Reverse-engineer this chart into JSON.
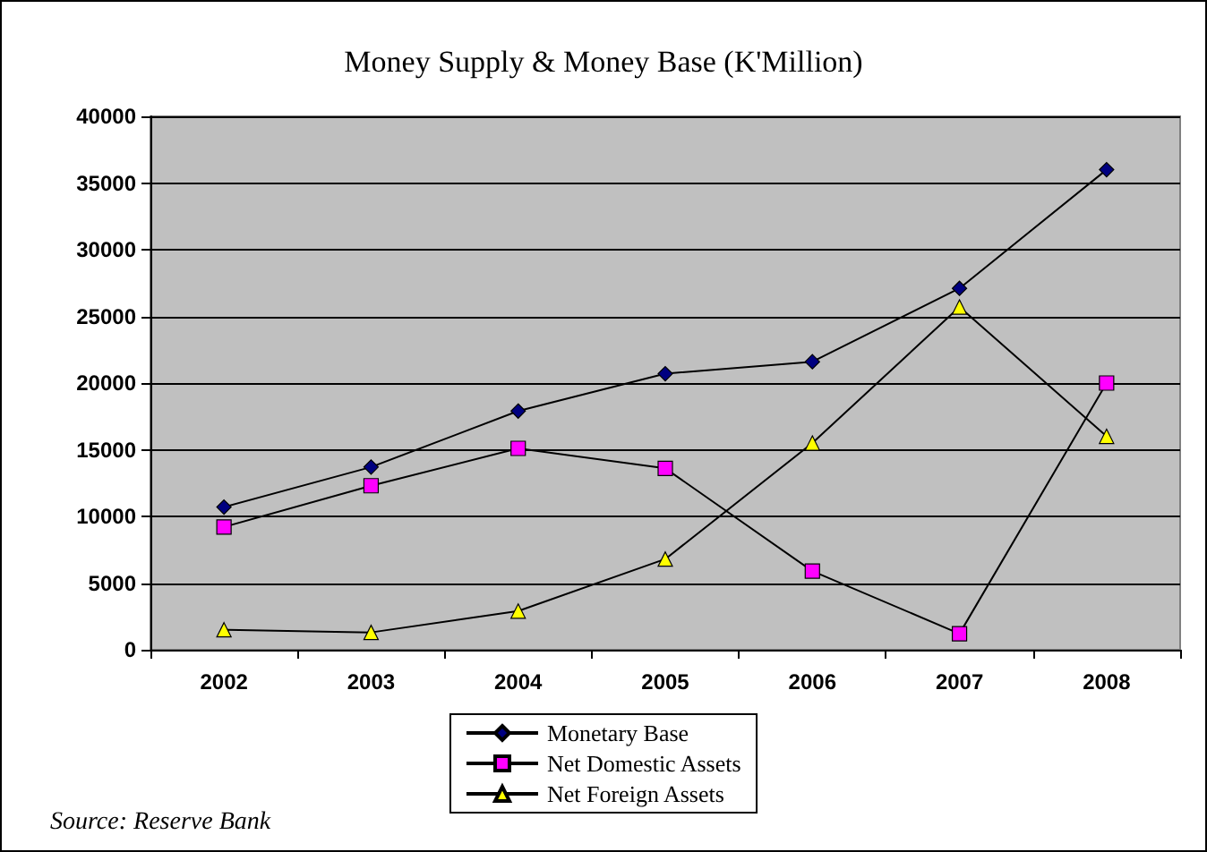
{
  "chart_data": {
    "type": "line",
    "title": "Money Supply & Money Base (K'Million)",
    "categories": [
      "2002",
      "2003",
      "2004",
      "2005",
      "2006",
      "2007",
      "2008"
    ],
    "series": [
      {
        "name": "Monetary Base",
        "color": "#000080",
        "marker": "diamond",
        "values": [
          10700,
          13700,
          17900,
          20700,
          21600,
          27100,
          36000
        ]
      },
      {
        "name": "Net Domestic Assets",
        "color": "#ff00ff",
        "marker": "square",
        "values": [
          9200,
          12300,
          15100,
          13600,
          5900,
          1200,
          20000
        ]
      },
      {
        "name": "Net Foreign Assets",
        "color": "#ffff00",
        "marker": "triangle",
        "values": [
          1500,
          1300,
          2900,
          6800,
          15500,
          25700,
          16000
        ]
      }
    ],
    "ylim": [
      0,
      40000
    ],
    "yticks": [
      0,
      5000,
      10000,
      15000,
      20000,
      25000,
      30000,
      35000,
      40000
    ],
    "grid": "y",
    "legend": "bottom",
    "line_style": "solid",
    "annotations": [
      "Source: Reserve Bank"
    ]
  }
}
